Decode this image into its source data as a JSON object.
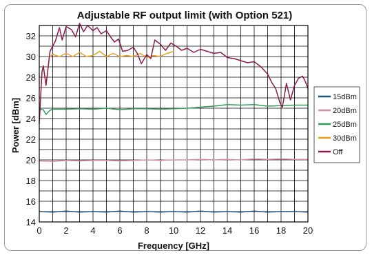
{
  "chart_data": {
    "type": "line",
    "title": "Adjustable RF output limit (with Option 521)",
    "xlabel": "Frequency [GHz]",
    "ylabel": "Power [dBm]",
    "xlim": [
      0,
      20
    ],
    "ylim": [
      14,
      33
    ],
    "x_ticks": [
      0,
      2,
      4,
      6,
      8,
      10,
      12,
      14,
      16,
      18,
      20
    ],
    "y_ticks": [
      14,
      16,
      18,
      20,
      22,
      24,
      26,
      28,
      30,
      32
    ],
    "grid": true,
    "legend_position": "right",
    "series": [
      {
        "name": "15dBm",
        "color": "#1f4e79",
        "points": [
          [
            0,
            15.0
          ],
          [
            1,
            14.95
          ],
          [
            2,
            15.05
          ],
          [
            3,
            14.95
          ],
          [
            4,
            15.0
          ],
          [
            5,
            14.95
          ],
          [
            6,
            15.05
          ],
          [
            7,
            14.95
          ],
          [
            8,
            15.0
          ],
          [
            9,
            14.95
          ],
          [
            10,
            15.0
          ],
          [
            11,
            14.95
          ],
          [
            12,
            15.05
          ],
          [
            13,
            14.95
          ],
          [
            14,
            15.0
          ],
          [
            15,
            14.95
          ],
          [
            16,
            15.05
          ],
          [
            17,
            14.95
          ],
          [
            18,
            15.0
          ],
          [
            19,
            15.0
          ],
          [
            20,
            14.95
          ]
        ]
      },
      {
        "name": "20dBm",
        "color": "#d9909a",
        "points": [
          [
            0,
            19.9
          ],
          [
            1,
            19.85
          ],
          [
            2,
            19.95
          ],
          [
            3,
            19.9
          ],
          [
            4,
            19.95
          ],
          [
            5,
            19.95
          ],
          [
            6,
            19.9
          ],
          [
            7,
            19.95
          ],
          [
            8,
            20.0
          ],
          [
            9,
            19.95
          ],
          [
            10,
            20.0
          ],
          [
            11,
            20.0
          ],
          [
            12,
            20.05
          ],
          [
            13,
            20.0
          ],
          [
            14,
            20.05
          ],
          [
            15,
            20.0
          ],
          [
            16,
            20.1
          ],
          [
            17,
            20.05
          ],
          [
            18,
            20.1
          ],
          [
            19,
            20.05
          ],
          [
            20,
            20.05
          ]
        ]
      },
      {
        "name": "25dBm",
        "color": "#2e9e57",
        "points": [
          [
            0,
            24.9
          ],
          [
            0.3,
            24.85
          ],
          [
            0.5,
            24.4
          ],
          [
            0.8,
            24.8
          ],
          [
            1,
            24.9
          ],
          [
            2,
            24.9
          ],
          [
            3,
            24.95
          ],
          [
            4,
            24.9
          ],
          [
            5,
            25.0
          ],
          [
            6,
            24.85
          ],
          [
            7,
            24.95
          ],
          [
            8,
            24.95
          ],
          [
            9,
            24.9
          ],
          [
            10,
            24.95
          ],
          [
            11,
            25.0
          ],
          [
            12,
            25.1
          ],
          [
            13,
            25.2
          ],
          [
            14,
            25.35
          ],
          [
            15,
            25.3
          ],
          [
            16,
            25.35
          ],
          [
            17,
            25.2
          ],
          [
            18,
            25.25
          ],
          [
            19,
            25.3
          ],
          [
            20,
            25.3
          ]
        ]
      },
      {
        "name": "30dBm",
        "color": "#e8a020",
        "points": [
          [
            0.8,
            30.0
          ],
          [
            1,
            30.2
          ],
          [
            1.5,
            30.0
          ],
          [
            2,
            30.3
          ],
          [
            2.5,
            30.0
          ],
          [
            3,
            30.4
          ],
          [
            3.5,
            30.0
          ],
          [
            4,
            30.1
          ],
          [
            4.5,
            30.5
          ],
          [
            5,
            30.0
          ],
          [
            5.5,
            30.3
          ],
          [
            6,
            30.0
          ],
          [
            6.5,
            30.1
          ],
          [
            7,
            30.0
          ],
          [
            7.5,
            30.3
          ],
          [
            8,
            29.9
          ],
          [
            8.5,
            30.1
          ],
          [
            9,
            30.0
          ],
          [
            9.5,
            30.3
          ],
          [
            10,
            30.5
          ]
        ]
      },
      {
        "name": "Off",
        "color": "#8b1a4a",
        "points": [
          [
            0,
            23.5
          ],
          [
            0.2,
            28.5
          ],
          [
            0.3,
            29.1
          ],
          [
            0.5,
            27.2
          ],
          [
            0.8,
            30.5
          ],
          [
            1,
            31.0
          ],
          [
            1.2,
            31.5
          ],
          [
            1.5,
            32.8
          ],
          [
            1.7,
            31.6
          ],
          [
            2,
            32.9
          ],
          [
            2.4,
            32.6
          ],
          [
            2.7,
            31.9
          ],
          [
            3,
            33.2
          ],
          [
            3.3,
            32.4
          ],
          [
            3.6,
            33.0
          ],
          [
            4,
            32.5
          ],
          [
            4.3,
            32.8
          ],
          [
            4.6,
            32.2
          ],
          [
            5,
            32.5
          ],
          [
            5.3,
            31.9
          ],
          [
            5.6,
            31.4
          ],
          [
            5.9,
            31.7
          ],
          [
            6.2,
            30.5
          ],
          [
            6.6,
            30.6
          ],
          [
            7,
            30.9
          ],
          [
            7.3,
            30.3
          ],
          [
            7.6,
            29.3
          ],
          [
            8,
            30.2
          ],
          [
            8.3,
            29.8
          ],
          [
            8.6,
            31.6
          ],
          [
            9,
            31.2
          ],
          [
            9.4,
            30.6
          ],
          [
            9.8,
            31.3
          ],
          [
            10.2,
            31.0
          ],
          [
            10.6,
            30.6
          ],
          [
            11,
            30.8
          ],
          [
            11.5,
            30.4
          ],
          [
            12,
            30.7
          ],
          [
            12.5,
            30.5
          ],
          [
            13,
            30.3
          ],
          [
            13.5,
            30.4
          ],
          [
            14,
            29.9
          ],
          [
            14.5,
            29.8
          ],
          [
            15,
            29.6
          ],
          [
            15.5,
            29.4
          ],
          [
            16,
            29.5
          ],
          [
            16.5,
            29.0
          ],
          [
            17,
            28.3
          ],
          [
            17.3,
            27.5
          ],
          [
            17.6,
            26.9
          ],
          [
            17.9,
            25.6
          ],
          [
            18.1,
            25.1
          ],
          [
            18.4,
            27.4
          ],
          [
            18.7,
            25.8
          ],
          [
            19,
            27.2
          ],
          [
            19.3,
            27.9
          ],
          [
            19.6,
            28.1
          ],
          [
            19.8,
            27.6
          ],
          [
            20,
            26.9
          ]
        ]
      }
    ]
  }
}
